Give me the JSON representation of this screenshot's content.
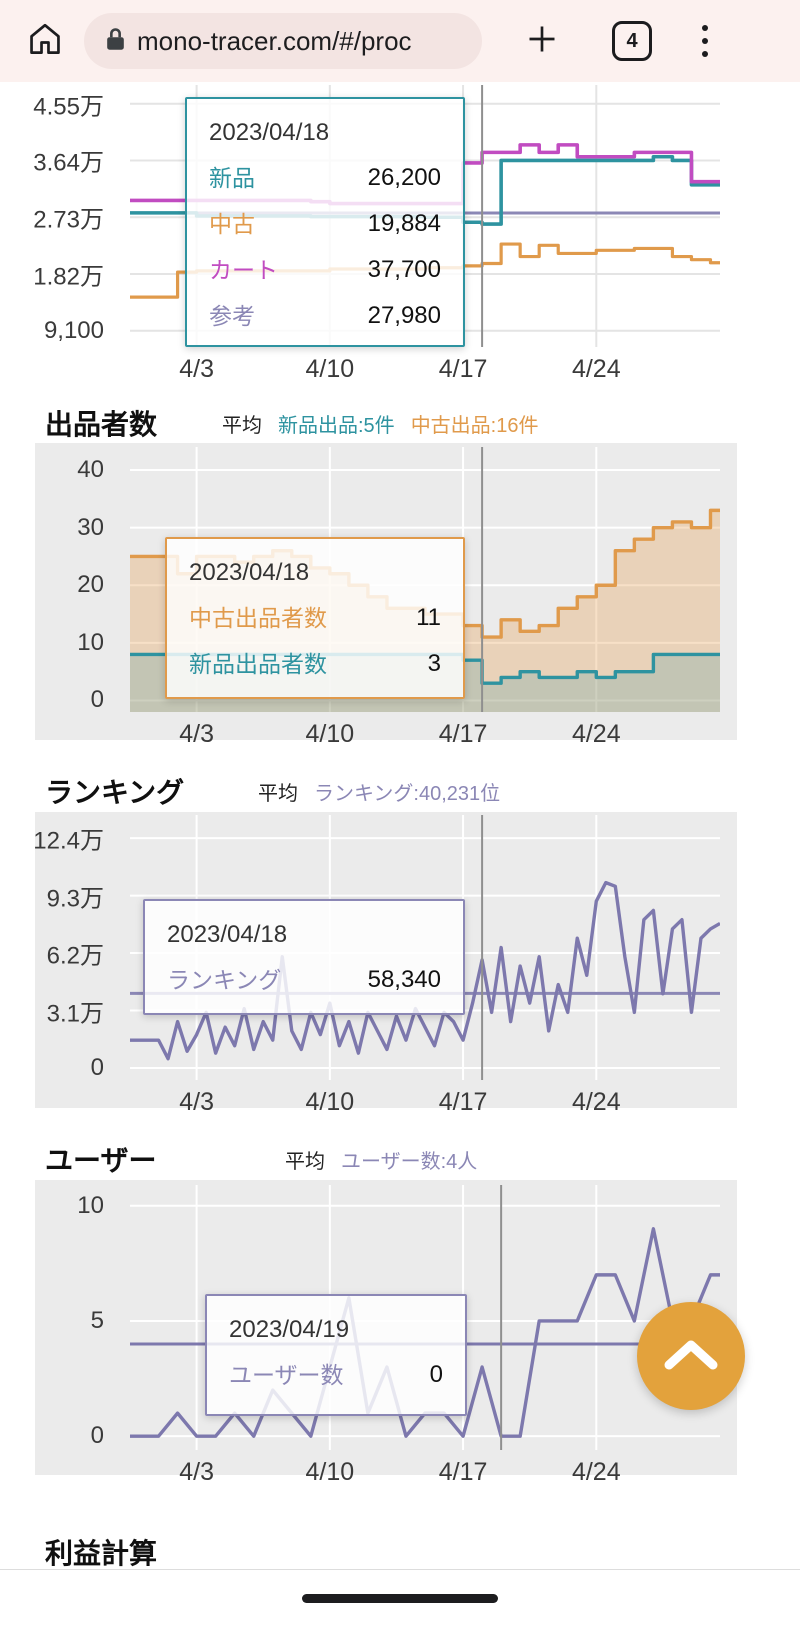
{
  "browser": {
    "url": "mono-tracer.com/#/proc",
    "tab_count": "4"
  },
  "colors": {
    "teal": "#2e93a0",
    "orange": "#e09a4b",
    "magenta": "#c14cc1",
    "purple": "#8b87b5",
    "fab": "#e3a23c"
  },
  "sections": {
    "sellers": {
      "title": "出品者数",
      "avg_label": "平均",
      "stats": [
        {
          "text": "新品出品:5件",
          "color": "#2e93a0"
        },
        {
          "text": "中古出品:16件",
          "color": "#e09a4b"
        }
      ]
    },
    "ranking": {
      "title": "ランキング",
      "avg_label": "平均",
      "stats": [
        {
          "text": "ランキング:40,231位",
          "color": "#8b87b5"
        }
      ]
    },
    "users": {
      "title": "ユーザー",
      "avg_label": "平均",
      "stats": [
        {
          "text": "ユーザー数:4人",
          "color": "#8b87b5"
        }
      ]
    },
    "partial": {
      "title": "利益計算"
    }
  },
  "tooltips": [
    {
      "date": "2023/04/18",
      "border_color": "#2e93a0",
      "rows": [
        {
          "label": "新品",
          "value": "26,200",
          "color": "#2e93a0"
        },
        {
          "label": "中古",
          "value": "19,884",
          "color": "#e09a4b"
        },
        {
          "label": "カート",
          "value": "37,700",
          "color": "#c14cc1"
        },
        {
          "label": "参考",
          "value": "27,980",
          "color": "#8b87b5"
        }
      ]
    },
    {
      "date": "2023/04/18",
      "border_color": "#e09a4b",
      "rows": [
        {
          "label": "中古出品者数",
          "value": "11",
          "color": "#e09a4b"
        },
        {
          "label": "新品出品者数",
          "value": "3",
          "color": "#2e93a0"
        }
      ]
    },
    {
      "date": "2023/04/18",
      "border_color": "#8b87b5",
      "rows": [
        {
          "label": "ランキング",
          "value": "58,340",
          "color": "#8b87b5"
        }
      ]
    },
    {
      "date": "2023/04/19",
      "border_color": "#8b87b5",
      "rows": [
        {
          "label": "ユーザー数",
          "value": "0",
          "color": "#8b87b5"
        }
      ]
    }
  ],
  "chart_data": [
    {
      "dom": "c1",
      "type": "line",
      "bg": "#ffffff",
      "grid": "#e4e4e4",
      "ylim": [
        6500,
        48500
      ],
      "y_ticks": [
        {
          "value": 9100,
          "label": "9,100"
        },
        {
          "value": 18200,
          "label": "1.82万"
        },
        {
          "value": 27300,
          "label": "2.73万"
        },
        {
          "value": 36400,
          "label": "3.64万"
        },
        {
          "value": 45500,
          "label": "4.55万"
        }
      ],
      "x_ticks": [
        {
          "day": 3,
          "label": "4/3"
        },
        {
          "day": 10,
          "label": "4/10"
        },
        {
          "day": 17,
          "label": "4/17"
        },
        {
          "day": 24,
          "label": "4/24"
        }
      ],
      "crosshair_day": 18,
      "series": [
        {
          "name": "参考",
          "color": "#8b87b5",
          "width": 3,
          "step": true,
          "values": [
            27980,
            27980,
            27980,
            27980,
            27980,
            27980,
            27980,
            27980,
            27980,
            27980,
            27980,
            27980,
            27980,
            27980,
            27980,
            27980,
            27980,
            27980,
            27980,
            27980,
            27980,
            27980,
            27980,
            27980,
            27980,
            27980,
            27980,
            27980,
            27980,
            27980
          ]
        },
        {
          "name": "中古",
          "color": "#e09a4b",
          "width": 3.2,
          "step": true,
          "values": [
            14500,
            18500,
            18700,
            18700,
            18700,
            18700,
            18700,
            18700,
            18700,
            19000,
            19000,
            19000,
            19000,
            19000,
            19200,
            19200,
            19500,
            19884,
            23000,
            21000,
            22800,
            21500,
            21500,
            22000,
            22000,
            22300,
            22300,
            21000,
            20500,
            20000
          ]
        },
        {
          "name": "新品",
          "color": "#2e93a0",
          "width": 3.6,
          "step": true,
          "values": [
            28000,
            28000,
            27500,
            27500,
            27500,
            27500,
            27500,
            27500,
            27400,
            27400,
            27400,
            27400,
            27400,
            27400,
            27300,
            27300,
            26500,
            26200,
            36400,
            36400,
            36400,
            36400,
            36400,
            36400,
            36400,
            36400,
            37000,
            36400,
            32500,
            32500
          ]
        },
        {
          "name": "カート",
          "color": "#c14cc1",
          "width": 3.6,
          "step": true,
          "values": [
            30000,
            30000,
            30000,
            30000,
            30000,
            30000,
            30000,
            30000,
            29800,
            29500,
            29500,
            29500,
            29500,
            29500,
            29500,
            29500,
            36000,
            37700,
            37700,
            38900,
            37700,
            38900,
            37000,
            37000,
            37000,
            37700,
            37700,
            37700,
            33000,
            33000
          ]
        }
      ]
    },
    {
      "dom": "c2",
      "type": "area",
      "bg": "#ebebeb",
      "grid": "#ffffff",
      "ylim": [
        -2,
        44
      ],
      "y_ticks": [
        {
          "value": 0,
          "label": "0"
        },
        {
          "value": 10,
          "label": "10"
        },
        {
          "value": 20,
          "label": "20"
        },
        {
          "value": 30,
          "label": "30"
        },
        {
          "value": 40,
          "label": "40"
        }
      ],
      "x_ticks": [
        {
          "day": 3,
          "label": "4/3"
        },
        {
          "day": 10,
          "label": "4/10"
        },
        {
          "day": 17,
          "label": "4/17"
        },
        {
          "day": 24,
          "label": "4/24"
        }
      ],
      "crosshair_day": 18,
      "series": [
        {
          "name": "中古出品者数",
          "color": "#e09a4b",
          "width": 3.4,
          "step": true,
          "fill": "rgba(230,160,82,0.32)",
          "values": [
            25,
            22,
            25,
            25,
            24,
            25,
            26,
            25,
            23,
            22,
            20,
            18,
            16,
            16,
            15,
            15,
            13,
            11,
            14,
            12,
            13,
            16,
            18,
            20,
            26,
            28,
            30,
            31,
            30,
            33
          ]
        },
        {
          "name": "新品出品者数",
          "color": "#2e93a0",
          "width": 3.4,
          "step": true,
          "fill": "rgba(46,147,160,0.20)",
          "values": [
            8,
            8,
            8,
            8,
            8,
            8,
            8,
            8,
            8,
            8,
            8,
            8,
            8,
            8,
            8,
            8,
            7,
            3,
            4,
            5,
            4,
            4,
            5,
            4,
            5,
            5,
            8,
            8,
            8,
            8
          ]
        }
      ]
    },
    {
      "dom": "c3",
      "type": "line",
      "bg": "#ebebeb",
      "grid": "#ffffff",
      "ylim": [
        -6500,
        136500
      ],
      "y_ticks": [
        {
          "value": 0,
          "label": "0"
        },
        {
          "value": 31000,
          "label": "3.1万"
        },
        {
          "value": 62000,
          "label": "6.2万"
        },
        {
          "value": 93000,
          "label": "9.3万"
        },
        {
          "value": 124000,
          "label": "12.4万"
        }
      ],
      "x_ticks": [
        {
          "day": 3,
          "label": "4/3"
        },
        {
          "day": 10,
          "label": "4/10"
        },
        {
          "day": 17,
          "label": "4/17"
        },
        {
          "day": 24,
          "label": "4/24"
        }
      ],
      "crosshair_day": 18,
      "average_line": {
        "value": 40231,
        "color": "#8b87b5"
      },
      "series": [
        {
          "name": "ランキング",
          "color": "#7d78ad",
          "width": 3.4,
          "step": false,
          "x_step": 0.5,
          "x_start": 1,
          "values": [
            15000,
            5000,
            25000,
            9000,
            18000,
            30000,
            8000,
            22000,
            12000,
            32000,
            10000,
            25000,
            15000,
            60000,
            20000,
            10000,
            30000,
            18000,
            35000,
            12000,
            25000,
            8000,
            30000,
            20000,
            10000,
            28000,
            15000,
            32000,
            22000,
            12000,
            30000,
            25000,
            15000,
            35000,
            58340,
            30000,
            65000,
            25000,
            55000,
            35000,
            60000,
            20000,
            45000,
            30000,
            70000,
            50000,
            90000,
            100000,
            98000,
            60000,
            30000,
            80000,
            85000,
            40000,
            75000,
            80000,
            30000,
            70000,
            75000,
            78000
          ]
        }
      ]
    },
    {
      "dom": "c4",
      "type": "line",
      "bg": "#ebebeb",
      "grid": "#ffffff",
      "ylim": [
        -0.6,
        10.9
      ],
      "y_ticks": [
        {
          "value": 0,
          "label": "0"
        },
        {
          "value": 5,
          "label": "5"
        },
        {
          "value": 10,
          "label": "10"
        }
      ],
      "x_ticks": [
        {
          "day": 3,
          "label": "4/3"
        },
        {
          "day": 10,
          "label": "4/10"
        },
        {
          "day": 17,
          "label": "4/17"
        },
        {
          "day": 24,
          "label": "4/24"
        }
      ],
      "crosshair_day": 19,
      "average_line": {
        "value": 4,
        "color": "#7d78ad"
      },
      "series": [
        {
          "name": "ユーザー数",
          "color": "#7d78ad",
          "width": 3.4,
          "step": false,
          "values": [
            0,
            1,
            0,
            0,
            1,
            0,
            2,
            1,
            0,
            3,
            6,
            1,
            3,
            0,
            1,
            1,
            0,
            3,
            0,
            0,
            5,
            5,
            5,
            7,
            7,
            5,
            9,
            5,
            5,
            7
          ]
        }
      ]
    }
  ]
}
